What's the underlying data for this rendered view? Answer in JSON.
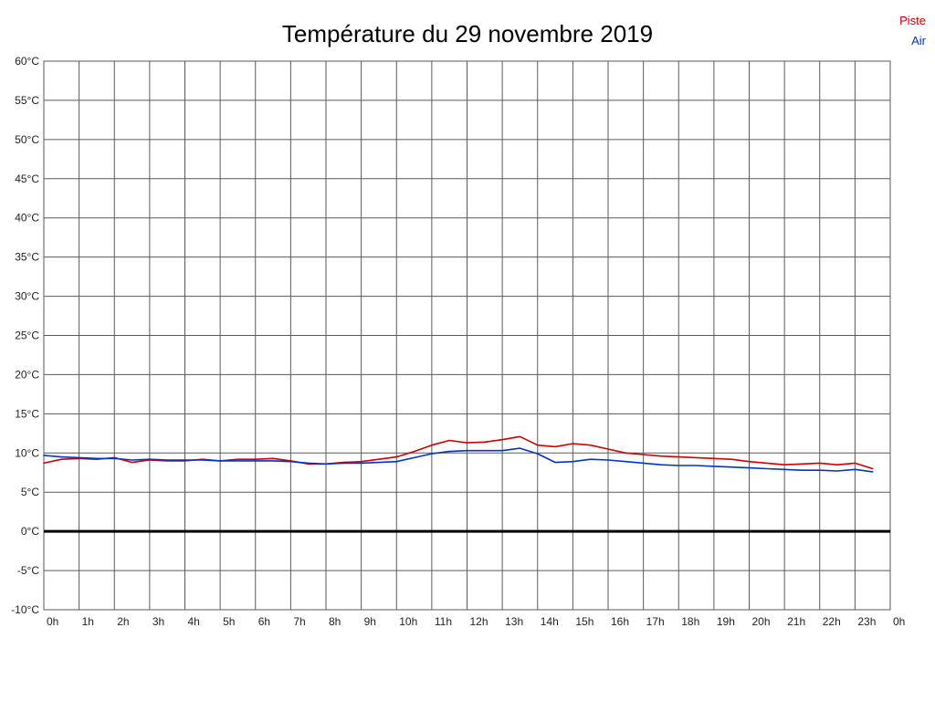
{
  "title": "Température du 29 novembre 2019",
  "legend": [
    {
      "label": "Piste",
      "color": "#cc0000"
    },
    {
      "label": "Air",
      "color": "#0033cc"
    }
  ],
  "chart_data": {
    "type": "line",
    "title": "Température du 29 novembre 2019",
    "xlabel": "",
    "ylabel": "°C",
    "ylim": [
      -10,
      60
    ],
    "y_tick_step": 5,
    "y_tick_labels": [
      "-10°C",
      "-5°C",
      "0°C",
      "5°C",
      "10°C",
      "15°C",
      "20°C",
      "25°C",
      "30°C",
      "35°C",
      "40°C",
      "45°C",
      "50°C",
      "55°C",
      "60°C"
    ],
    "x_tick_labels": [
      "0h",
      "1h",
      "2h",
      "3h",
      "4h",
      "5h",
      "6h",
      "7h",
      "8h",
      "9h",
      "10h",
      "11h",
      "12h",
      "13h",
      "14h",
      "15h",
      "16h",
      "17h",
      "18h",
      "19h",
      "20h",
      "21h",
      "22h",
      "23h",
      "0h"
    ],
    "grid": true,
    "zero_line": true,
    "legend_position": "top-right",
    "x": [
      0,
      0.5,
      1,
      1.5,
      2,
      2.5,
      3,
      3.5,
      4,
      4.5,
      5,
      5.5,
      6,
      6.5,
      7,
      7.5,
      8,
      8.5,
      9,
      9.5,
      10,
      10.5,
      11,
      11.5,
      12,
      12.5,
      13,
      13.5,
      14,
      14.5,
      15,
      15.5,
      16,
      16.5,
      17,
      17.5,
      18,
      18.5,
      19,
      19.5,
      20,
      20.5,
      21,
      21.5,
      22,
      22.5,
      23,
      23.5
    ],
    "series": [
      {
        "name": "Piste",
        "color": "#cc0000",
        "values": [
          8.7,
          9.2,
          9.3,
          9.2,
          9.4,
          8.8,
          9.1,
          9.0,
          9.0,
          9.2,
          9.0,
          9.2,
          9.2,
          9.3,
          9.0,
          8.6,
          8.6,
          8.8,
          8.9,
          9.2,
          9.5,
          10.2,
          11.0,
          11.6,
          11.3,
          11.4,
          11.7,
          12.1,
          11.0,
          10.8,
          11.2,
          11.0,
          10.5,
          10.0,
          9.8,
          9.6,
          9.5,
          9.4,
          9.3,
          9.2,
          8.9,
          8.7,
          8.5,
          8.6,
          8.7,
          8.5,
          8.7,
          8.0
        ]
      },
      {
        "name": "Air",
        "color": "#0033cc",
        "values": [
          9.7,
          9.5,
          9.4,
          9.3,
          9.3,
          9.1,
          9.2,
          9.1,
          9.1,
          9.1,
          9.0,
          9.0,
          9.0,
          9.0,
          8.9,
          8.7,
          8.6,
          8.7,
          8.7,
          8.8,
          8.9,
          9.4,
          9.9,
          10.2,
          10.3,
          10.3,
          10.3,
          10.6,
          9.9,
          8.8,
          8.9,
          9.2,
          9.1,
          8.9,
          8.7,
          8.5,
          8.4,
          8.4,
          8.3,
          8.2,
          8.1,
          8.0,
          7.9,
          7.8,
          7.8,
          7.7,
          7.9,
          7.6
        ]
      }
    ]
  },
  "style": {
    "grid_color": "#5a5a5a",
    "zero_line_color": "#000000",
    "tick_label_color": "#222222"
  }
}
